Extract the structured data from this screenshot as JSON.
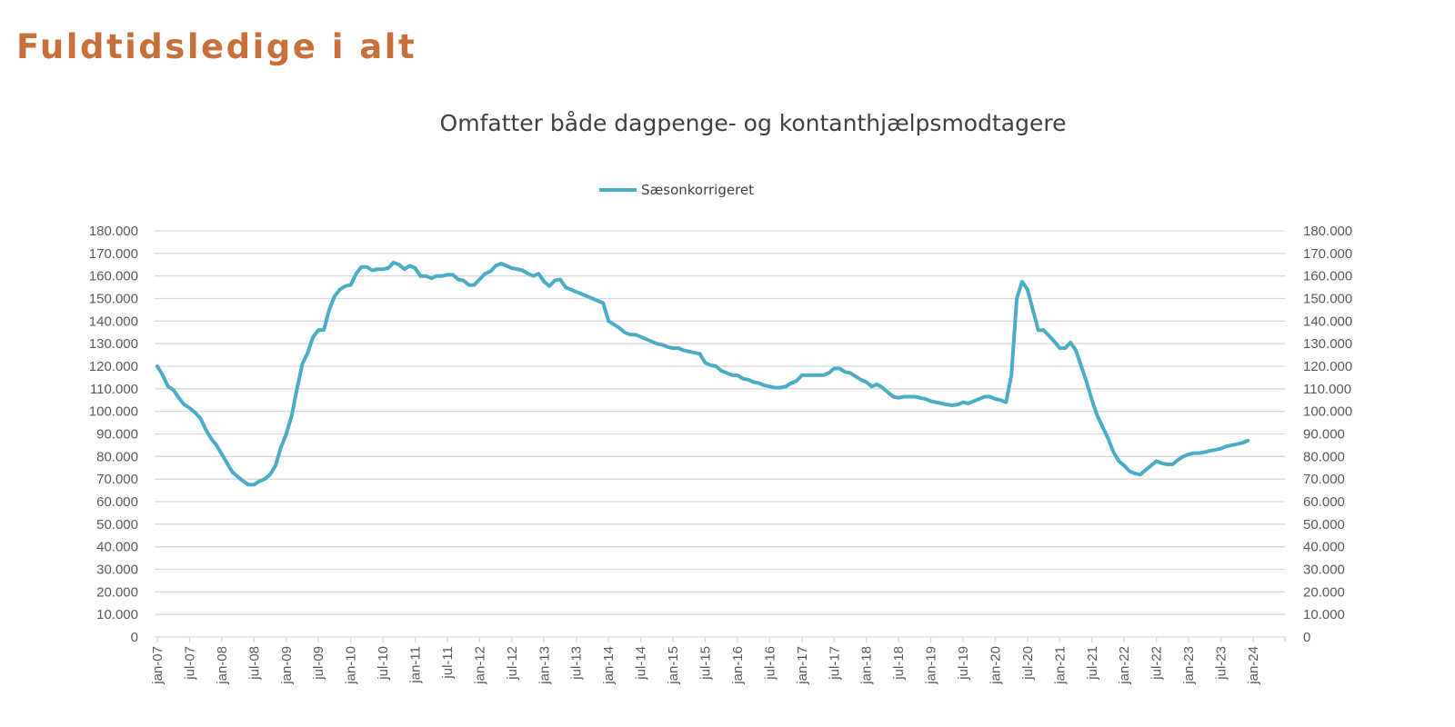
{
  "page": {
    "title": "Fuldtidsledige i alt"
  },
  "chart_data": {
    "type": "line",
    "title": "Omfatter både dagpenge- og kontanthjælpsmodtagere",
    "xlabel": "",
    "ylabel": "",
    "ylim": [
      0,
      180000
    ],
    "xlim": [
      "2007-01",
      "2024-06"
    ],
    "grid": true,
    "legend_position": "top",
    "color": "#4BACC6",
    "y_tick_labels": [
      "0",
      "10.000",
      "20.000",
      "30.000",
      "40.000",
      "50.000",
      "60.000",
      "70.000",
      "80.000",
      "90.000",
      "100.000",
      "110.000",
      "120.000",
      "130.000",
      "140.000",
      "150.000",
      "160.000",
      "170.000",
      "180.000"
    ],
    "y_ticks": [
      0,
      10000,
      20000,
      30000,
      40000,
      50000,
      60000,
      70000,
      80000,
      90000,
      100000,
      110000,
      120000,
      130000,
      140000,
      150000,
      160000,
      170000,
      180000
    ],
    "secondary_y_axis": true,
    "x_tick_labels": [
      "jan-07",
      "jul-07",
      "jan-08",
      "jul-08",
      "jan-09",
      "jul-09",
      "jan-10",
      "jul-10",
      "jan-11",
      "jul-11",
      "jan-12",
      "jul-12",
      "jan-13",
      "jul-13",
      "jan-14",
      "jul-14",
      "jan-15",
      "jul-15",
      "jan-16",
      "jul-16",
      "jan-17",
      "jul-17",
      "jan-18",
      "jul-18",
      "jan-19",
      "jul-19",
      "jan-20",
      "jul-20",
      "jan-21",
      "jul-21",
      "jan-22",
      "jul-22",
      "jan-23",
      "jul-23",
      "jan-24"
    ],
    "series": [
      {
        "name": "Sæsonkorrigeret",
        "x": [
          "2007-01",
          "2007-02",
          "2007-03",
          "2007-04",
          "2007-05",
          "2007-06",
          "2007-07",
          "2007-08",
          "2007-09",
          "2007-10",
          "2007-11",
          "2007-12",
          "2008-01",
          "2008-02",
          "2008-03",
          "2008-04",
          "2008-05",
          "2008-06",
          "2008-07",
          "2008-08",
          "2008-09",
          "2008-10",
          "2008-11",
          "2008-12",
          "2009-01",
          "2009-02",
          "2009-03",
          "2009-04",
          "2009-05",
          "2009-06",
          "2009-07",
          "2009-08",
          "2009-09",
          "2009-10",
          "2009-11",
          "2009-12",
          "2010-01",
          "2010-02",
          "2010-03",
          "2010-04",
          "2010-05",
          "2010-06",
          "2010-07",
          "2010-08",
          "2010-09",
          "2010-10",
          "2010-11",
          "2010-12",
          "2011-01",
          "2011-02",
          "2011-03",
          "2011-04",
          "2011-05",
          "2011-06",
          "2011-07",
          "2011-08",
          "2011-09",
          "2011-10",
          "2011-11",
          "2011-12",
          "2012-01",
          "2012-02",
          "2012-03",
          "2012-04",
          "2012-05",
          "2012-06",
          "2012-07",
          "2012-08",
          "2012-09",
          "2012-10",
          "2012-11",
          "2012-12",
          "2013-01",
          "2013-02",
          "2013-03",
          "2013-04",
          "2013-05",
          "2013-06",
          "2013-07",
          "2013-08",
          "2013-09",
          "2013-10",
          "2013-11",
          "2013-12",
          "2014-01",
          "2014-02",
          "2014-03",
          "2014-04",
          "2014-05",
          "2014-06",
          "2014-07",
          "2014-08",
          "2014-09",
          "2014-10",
          "2014-11",
          "2014-12",
          "2015-01",
          "2015-02",
          "2015-03",
          "2015-04",
          "2015-05",
          "2015-06",
          "2015-07",
          "2015-08",
          "2015-09",
          "2015-10",
          "2015-11",
          "2015-12",
          "2016-01",
          "2016-02",
          "2016-03",
          "2016-04",
          "2016-05",
          "2016-06",
          "2016-07",
          "2016-08",
          "2016-09",
          "2016-10",
          "2016-11",
          "2016-12",
          "2017-01",
          "2017-02",
          "2017-03",
          "2017-04",
          "2017-05",
          "2017-06",
          "2017-07",
          "2017-08",
          "2017-09",
          "2017-10",
          "2017-11",
          "2017-12",
          "2018-01",
          "2018-02",
          "2018-03",
          "2018-04",
          "2018-05",
          "2018-06",
          "2018-07",
          "2018-08",
          "2018-09",
          "2018-10",
          "2018-11",
          "2018-12",
          "2019-01",
          "2019-02",
          "2019-03",
          "2019-04",
          "2019-05",
          "2019-06",
          "2019-07",
          "2019-08",
          "2019-09",
          "2019-10",
          "2019-11",
          "2019-12",
          "2020-01",
          "2020-02",
          "2020-03",
          "2020-04",
          "2020-05",
          "2020-06",
          "2020-07",
          "2020-08",
          "2020-09",
          "2020-10",
          "2020-11",
          "2020-12",
          "2021-01",
          "2021-02",
          "2021-03",
          "2021-04",
          "2021-05",
          "2021-06",
          "2021-07",
          "2021-08",
          "2021-09",
          "2021-10",
          "2021-11",
          "2021-12",
          "2022-01",
          "2022-02",
          "2022-03",
          "2022-04",
          "2022-05",
          "2022-06",
          "2022-07",
          "2022-08",
          "2022-09",
          "2022-10",
          "2022-11",
          "2022-12",
          "2023-01",
          "2023-02",
          "2023-03",
          "2023-04",
          "2023-05",
          "2023-06",
          "2023-07",
          "2023-08",
          "2023-09",
          "2023-10",
          "2023-11",
          "2023-12"
        ],
        "values": [
          120000,
          116000,
          111000,
          109500,
          106000,
          103000,
          101500,
          99500,
          97000,
          92000,
          88000,
          85000,
          81000,
          77000,
          73000,
          71000,
          69000,
          67500,
          67500,
          69000,
          70000,
          72000,
          76000,
          84000,
          90000,
          98000,
          110000,
          121000,
          126000,
          133000,
          136000,
          136000,
          145000,
          151000,
          154000,
          155500,
          156000,
          161000,
          164000,
          164000,
          162500,
          163000,
          163000,
          163500,
          166000,
          165000,
          163000,
          164500,
          163500,
          160000,
          160000,
          159000,
          160000,
          160000,
          160500,
          160500,
          158500,
          158000,
          156000,
          156000,
          158500,
          161000,
          162000,
          164500,
          165500,
          164500,
          163500,
          163000,
          162500,
          161000,
          160000,
          161000,
          157500,
          155500,
          158000,
          158500,
          155000,
          154000,
          153000,
          152000,
          151000,
          150000,
          149000,
          148000,
          140000,
          138500,
          137000,
          135000,
          134000,
          134000,
          133000,
          132000,
          131000,
          130000,
          129500,
          128500,
          128000,
          128000,
          127000,
          126500,
          126000,
          125500,
          121500,
          120500,
          120000,
          118000,
          117000,
          116000,
          116000,
          114500,
          114000,
          113000,
          112500,
          111500,
          111000,
          110500,
          110500,
          111000,
          112500,
          113500,
          116000,
          116000,
          116000,
          116000,
          116000,
          117000,
          119000,
          119000,
          117500,
          117000,
          115500,
          114000,
          113000,
          111000,
          112000,
          110500,
          108500,
          106500,
          106000,
          106500,
          106500,
          106500,
          106000,
          105500,
          104500,
          104000,
          103500,
          103000,
          102700,
          103000,
          104000,
          103500,
          104500,
          105500,
          106500,
          106500,
          105500,
          105000,
          104000,
          116000,
          150000,
          157500,
          154000,
          145000,
          136000,
          136000,
          133500,
          131000,
          128000,
          128000,
          130500,
          127000,
          120000,
          113000,
          105000,
          98000,
          93000,
          88000,
          82000,
          78000,
          76000,
          73500,
          72500,
          72000,
          74000,
          76000,
          78000,
          77000,
          76500,
          76500,
          78500,
          80000,
          81000,
          81500,
          81500,
          82000,
          82500,
          83000,
          83500,
          84500,
          85000,
          85500,
          86000,
          87000
        ]
      }
    ]
  }
}
